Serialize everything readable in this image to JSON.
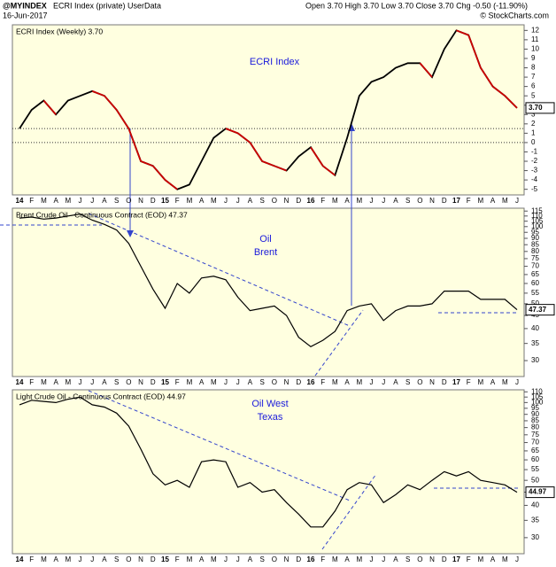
{
  "header": {
    "symbol": "@MYINDEX",
    "name": "ECRI Index (private) UserData",
    "date": "16-Jun-2017",
    "quote": "Open 3.70 High 3.70 Low 3.70 Close 3.70 Chg -0.50 (-11.90%)",
    "watermark": "© StockCharts.com"
  },
  "chart_data": [
    {
      "type": "line",
      "legend": "ECRI Index (Weekly) 3.70",
      "annotation": [
        "ECRI Index"
      ],
      "last_label": "3.70",
      "categories": [
        "14",
        "F",
        "M",
        "A",
        "M",
        "J",
        "J",
        "A",
        "S",
        "O",
        "N",
        "D",
        "15",
        "F",
        "M",
        "A",
        "M",
        "J",
        "J",
        "A",
        "S",
        "O",
        "N",
        "D",
        "16",
        "F",
        "M",
        "A",
        "M",
        "J",
        "J",
        "A",
        "S",
        "O",
        "N",
        "D",
        "17",
        "F",
        "M",
        "A",
        "M",
        "J"
      ],
      "series": [
        {
          "name": "ECRI Index",
          "color": "#000000",
          "falling_color": "#cc0000",
          "values": [
            1.5,
            3.5,
            4.5,
            3,
            4.5,
            5,
            5.5,
            5,
            3.5,
            1.5,
            -2,
            -2.5,
            -4,
            -5,
            -4.5,
            -2,
            0.5,
            1.5,
            1,
            0,
            -2,
            -2.5,
            -3,
            -1.5,
            -0.5,
            -2.5,
            -3.5,
            0.5,
            5,
            6.5,
            7,
            8,
            8.5,
            8.5,
            7,
            10,
            12,
            11.5,
            8,
            6,
            5,
            3.7
          ]
        }
      ],
      "ylim": [
        -5.6,
        12.6
      ],
      "yticks": [
        -5,
        -4,
        -3,
        -2,
        -1,
        0,
        1,
        2,
        3,
        4,
        5,
        6,
        7,
        8,
        9,
        10,
        11,
        12
      ],
      "reference_lines": [
        0,
        1.5
      ],
      "log": false
    },
    {
      "type": "line",
      "legend": "Brent Crude Oil - Continuous Contract (EOD) 47.37",
      "annotation": [
        "Oil",
        "Brent"
      ],
      "last_label": "47.37",
      "categories": [
        "14",
        "F",
        "M",
        "A",
        "M",
        "J",
        "J",
        "A",
        "S",
        "O",
        "N",
        "D",
        "15",
        "F",
        "M",
        "A",
        "M",
        "J",
        "J",
        "A",
        "S",
        "O",
        "N",
        "D",
        "16",
        "F",
        "M",
        "A",
        "M",
        "J",
        "J",
        "A",
        "S",
        "O",
        "N",
        "D",
        "17",
        "F",
        "M",
        "A",
        "M",
        "J"
      ],
      "series": [
        {
          "name": "Brent Crude Oil",
          "color": "#000000",
          "values": [
            108,
            109,
            107,
            108,
            110,
            112,
            106,
            102,
            97,
            86,
            70,
            57,
            48,
            60,
            55,
            63,
            64,
            62,
            53,
            47,
            48,
            49,
            45,
            37,
            34,
            36,
            39,
            47,
            49,
            50,
            43,
            47,
            49,
            49,
            50,
            56,
            56,
            56,
            52,
            52,
            52,
            47.37
          ]
        }
      ],
      "ylim": [
        26,
        118
      ],
      "yticks": [
        30,
        35,
        40,
        45,
        50,
        55,
        60,
        65,
        70,
        75,
        80,
        85,
        90,
        95,
        100,
        105,
        110,
        115
      ],
      "log": true
    },
    {
      "type": "line",
      "legend": "Light Crude Oil - Continuous Contract (EOD) 44.97",
      "annotation": [
        "Oil West",
        "Texas"
      ],
      "last_label": "44.97",
      "categories": [
        "14",
        "F",
        "M",
        "A",
        "M",
        "J",
        "J",
        "A",
        "S",
        "O",
        "N",
        "D",
        "15",
        "F",
        "M",
        "A",
        "M",
        "J",
        "J",
        "A",
        "S",
        "O",
        "N",
        "D",
        "16",
        "F",
        "M",
        "A",
        "M",
        "J",
        "J",
        "A",
        "S",
        "O",
        "N",
        "D",
        "17",
        "F",
        "M",
        "A",
        "M",
        "J"
      ],
      "series": [
        {
          "name": "Light Crude Oil",
          "color": "#000000",
          "values": [
            98,
            102,
            101,
            100,
            103,
            105,
            98,
            96,
            91,
            81,
            66,
            53,
            48,
            50,
            47,
            59,
            60,
            59,
            47,
            49,
            45,
            46,
            41,
            37,
            33,
            33,
            38,
            46,
            49,
            48,
            41,
            44,
            48,
            46,
            50,
            54,
            52,
            54,
            50,
            49,
            48,
            44.97
          ]
        }
      ],
      "ylim": [
        26,
        112
      ],
      "yticks": [
        30,
        35,
        40,
        45,
        50,
        55,
        60,
        65,
        70,
        75,
        80,
        85,
        90,
        95,
        100,
        105,
        110
      ],
      "log": true
    }
  ]
}
